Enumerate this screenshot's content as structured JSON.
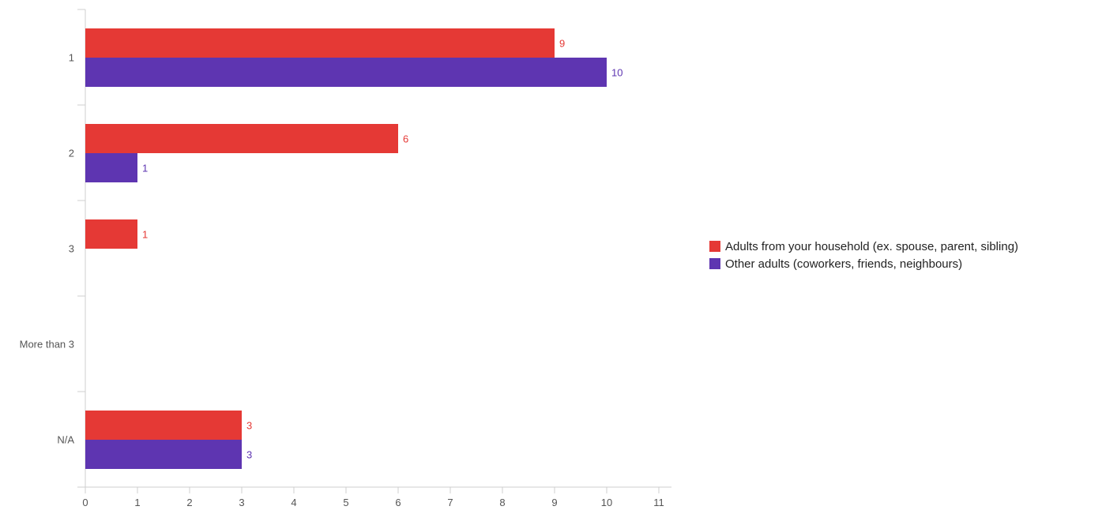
{
  "chart_data": {
    "type": "bar",
    "orientation": "horizontal",
    "categories": [
      "1",
      "2",
      "3",
      "More than 3",
      "N/A"
    ],
    "series": [
      {
        "name": "Adults from your household (ex. spouse, parent, sibling)",
        "values": [
          9,
          6,
          1,
          0,
          3
        ],
        "color": "#e53935"
      },
      {
        "name": "Other adults (coworkers, friends, neighbours)",
        "values": [
          10,
          1,
          0,
          0,
          3
        ],
        "color": "#5e35b1"
      }
    ],
    "value_labels": [
      [
        "9",
        "6",
        "1",
        "",
        "3"
      ],
      [
        "10",
        "1",
        "",
        "",
        "3"
      ]
    ],
    "xlim": [
      0,
      11
    ],
    "x_ticks": [
      "0",
      "1",
      "2",
      "3",
      "4",
      "5",
      "6",
      "7",
      "8",
      "9",
      "10",
      "11"
    ],
    "title": "",
    "xlabel": "",
    "ylabel": "",
    "grid": false,
    "legend_position": "right"
  }
}
